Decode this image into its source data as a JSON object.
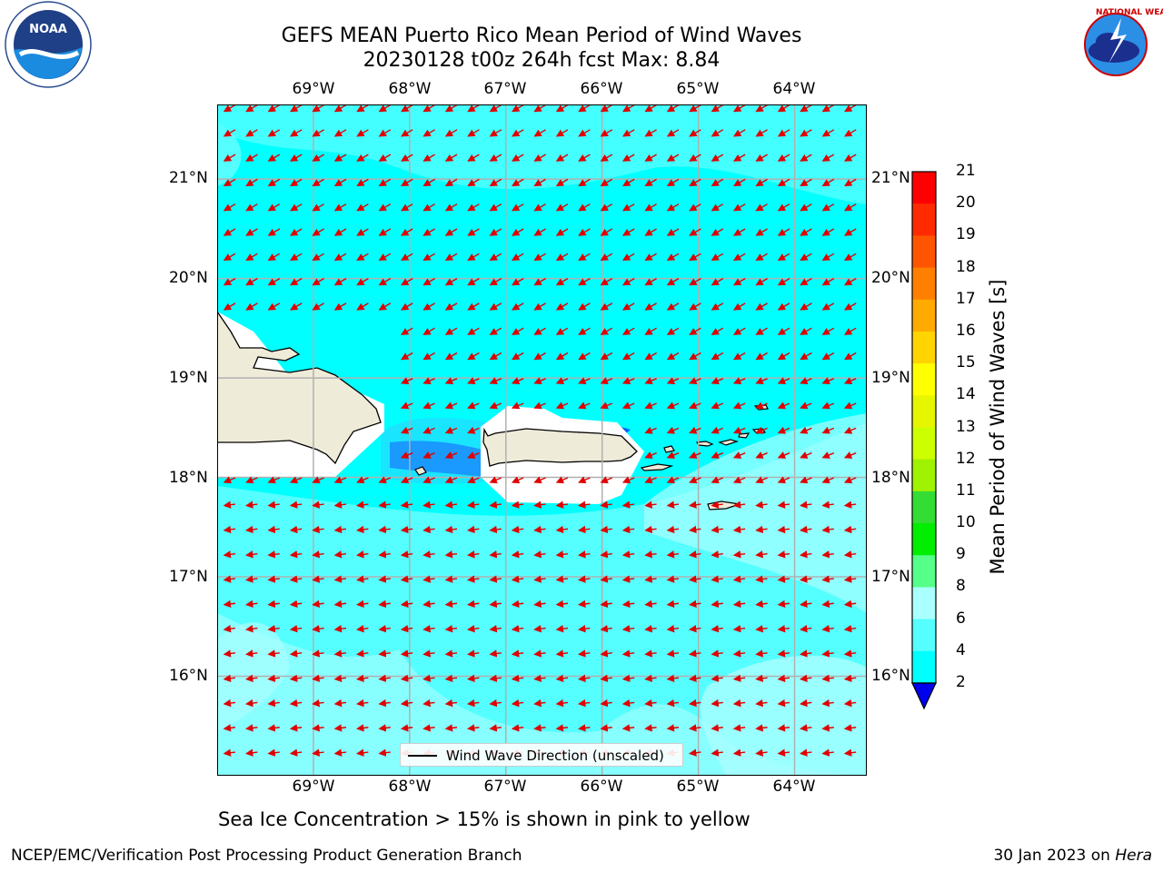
{
  "title_line1": "GEFS MEAN Puerto Rico Mean Period of Wind Waves",
  "title_line2": "20230128 t00z 264h fcst   Max: 8.84",
  "logos": {
    "noaa": "NOAA",
    "noaa_ring": "NATIONAL OCEANIC AND ATMOSPHERIC ADMINISTRATION · U.S. DEPARTMENT OF COMMERCE",
    "nws_ring": "NATIONAL WEATHER SERVICE"
  },
  "map": {
    "lon_labels": [
      "69°W",
      "68°W",
      "67°W",
      "66°W",
      "65°W",
      "64°W"
    ],
    "lat_labels": [
      "21°N",
      "20°N",
      "19°N",
      "18°N",
      "17°N",
      "16°N"
    ],
    "lon_range": [
      -70.0,
      -63.25
    ],
    "lat_range": [
      15.0,
      21.75
    ],
    "gridlines": true,
    "arrow_color": "#e00000",
    "land_color": "#efebd9"
  },
  "legend": {
    "label": "Wind Wave Direction (unscaled)"
  },
  "colorbar": {
    "label": "Mean Period of Wind Waves [s]",
    "ticks": [
      "21",
      "20",
      "19",
      "18",
      "17",
      "16",
      "15",
      "14",
      "13",
      "12",
      "11",
      "10",
      "9",
      "8",
      "6",
      "4",
      "2"
    ],
    "colors": [
      "#ff0000",
      "#ff2a00",
      "#ff5500",
      "#ff8000",
      "#ffaa00",
      "#ffd400",
      "#ffff00",
      "#e6f500",
      "#ccff00",
      "#9ff200",
      "#33dd33",
      "#00ee00",
      "#55ff88",
      "#aaffff",
      "#55ffff",
      "#00ffff",
      "#0066ff"
    ],
    "under_color": "#0000ee"
  },
  "footer_note": "Sea Ice Concentration > 15% is shown in pink to yellow",
  "credit_left": "NCEP/EMC/Verification Post Processing Product Generation Branch",
  "credit_right_prefix": "30 Jan 2023 on ",
  "credit_right_host": "Hera"
}
